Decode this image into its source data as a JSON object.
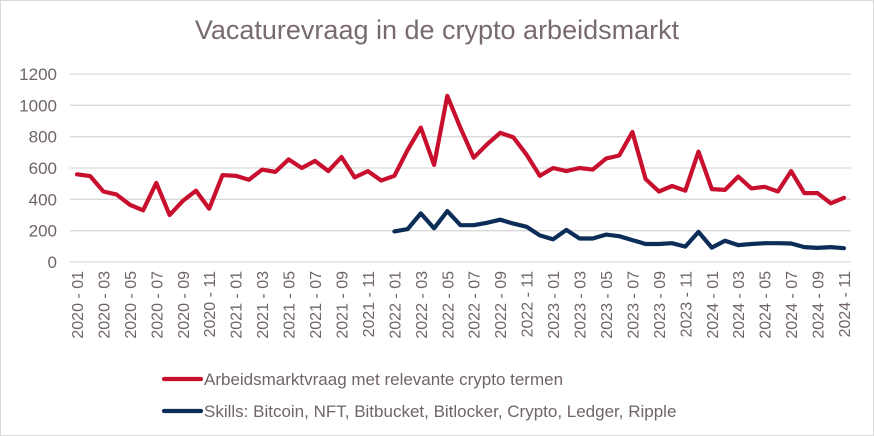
{
  "chart_data": {
    "type": "line",
    "title": "Vacaturevraag in de crypto arbeidsmarkt",
    "xlabel": "",
    "ylabel": "",
    "ylim": [
      0,
      1200
    ],
    "yticks": [
      0,
      200,
      400,
      600,
      800,
      1000,
      1200
    ],
    "grid": true,
    "legend_position": "bottom",
    "x": [
      "2020 - 01",
      "2020 - 02",
      "2020 - 03",
      "2020 - 04",
      "2020 - 05",
      "2020 - 06",
      "2020 - 07",
      "2020 - 08",
      "2020 - 09",
      "2020 - 10",
      "2020 - 11",
      "2020 - 12",
      "2021 - 01",
      "2021 - 02",
      "2021 - 03",
      "2021 - 04",
      "2021 - 05",
      "2021 - 06",
      "2021 - 07",
      "2021 - 08",
      "2021 - 09",
      "2021 - 10",
      "2021 - 11",
      "2021 - 12",
      "2022 - 01",
      "2022 - 02",
      "2022 - 03",
      "2022 - 04",
      "2022 - 05",
      "2022 - 06",
      "2022 - 07",
      "2022 - 08",
      "2022 - 09",
      "2022 - 10",
      "2022 - 11",
      "2022 - 12",
      "2023 - 01",
      "2023 - 02",
      "2023 - 03",
      "2023 - 04",
      "2023 - 05",
      "2023 - 06",
      "2023 - 07",
      "2023 - 08",
      "2023 - 09",
      "2023 - 10",
      "2023 - 11",
      "2023 - 12",
      "2024 - 01",
      "2024 - 02",
      "2024 - 03",
      "2024 - 04",
      "2024 - 05",
      "2024 - 06",
      "2024 - 07",
      "2024 - 08",
      "2024 - 09",
      "2024 - 10",
      "2024 - 11"
    ],
    "xtick_labels": [
      "2020 - 01",
      "2020 - 03",
      "2020 - 05",
      "2020 - 07",
      "2020 - 09",
      "2020 - 11",
      "2021 - 01",
      "2021 - 03",
      "2021 - 05",
      "2021 - 07",
      "2021 - 09",
      "2021 - 11",
      "2022 - 01",
      "2022 - 03",
      "2022 - 05",
      "2022 - 07",
      "2022 - 09",
      "2022 - 11",
      "2023 - 01",
      "2023 - 03",
      "2023 - 05",
      "2023 - 07",
      "2023 - 09",
      "2023 - 11",
      "2024 - 01",
      "2024 - 03",
      "2024 - 05",
      "2024 - 07",
      "2024 - 09",
      "2024 - 11"
    ],
    "series": [
      {
        "name": "Arbeidsmarktvraag met relevante crypto termen",
        "color": "#c8102e",
        "values": [
          560,
          548,
          450,
          430,
          365,
          330,
          505,
          300,
          390,
          455,
          340,
          555,
          550,
          525,
          590,
          575,
          655,
          600,
          645,
          580,
          670,
          540,
          580,
          520,
          550,
          715,
          858,
          620,
          1060,
          855,
          666,
          750,
          825,
          795,
          685,
          550,
          600,
          580,
          600,
          590,
          660,
          680,
          830,
          530,
          450,
          485,
          455,
          705,
          465,
          460,
          545,
          470,
          480,
          450,
          580,
          440,
          440,
          375,
          410
        ]
      },
      {
        "name": "Skills: Bitcoin, NFT, Bitbucket, Bitlocker, Crypto, Ledger, Ripple",
        "color": "#0c2d57",
        "values": [
          null,
          null,
          null,
          null,
          null,
          null,
          null,
          null,
          null,
          null,
          null,
          null,
          null,
          null,
          null,
          null,
          null,
          null,
          null,
          null,
          null,
          null,
          null,
          null,
          195,
          210,
          310,
          215,
          325,
          235,
          235,
          250,
          270,
          245,
          225,
          170,
          145,
          205,
          150,
          150,
          175,
          165,
          140,
          115,
          115,
          120,
          98,
          192,
          92,
          135,
          108,
          115,
          120,
          120,
          118,
          95,
          90,
          95,
          88
        ]
      }
    ]
  }
}
